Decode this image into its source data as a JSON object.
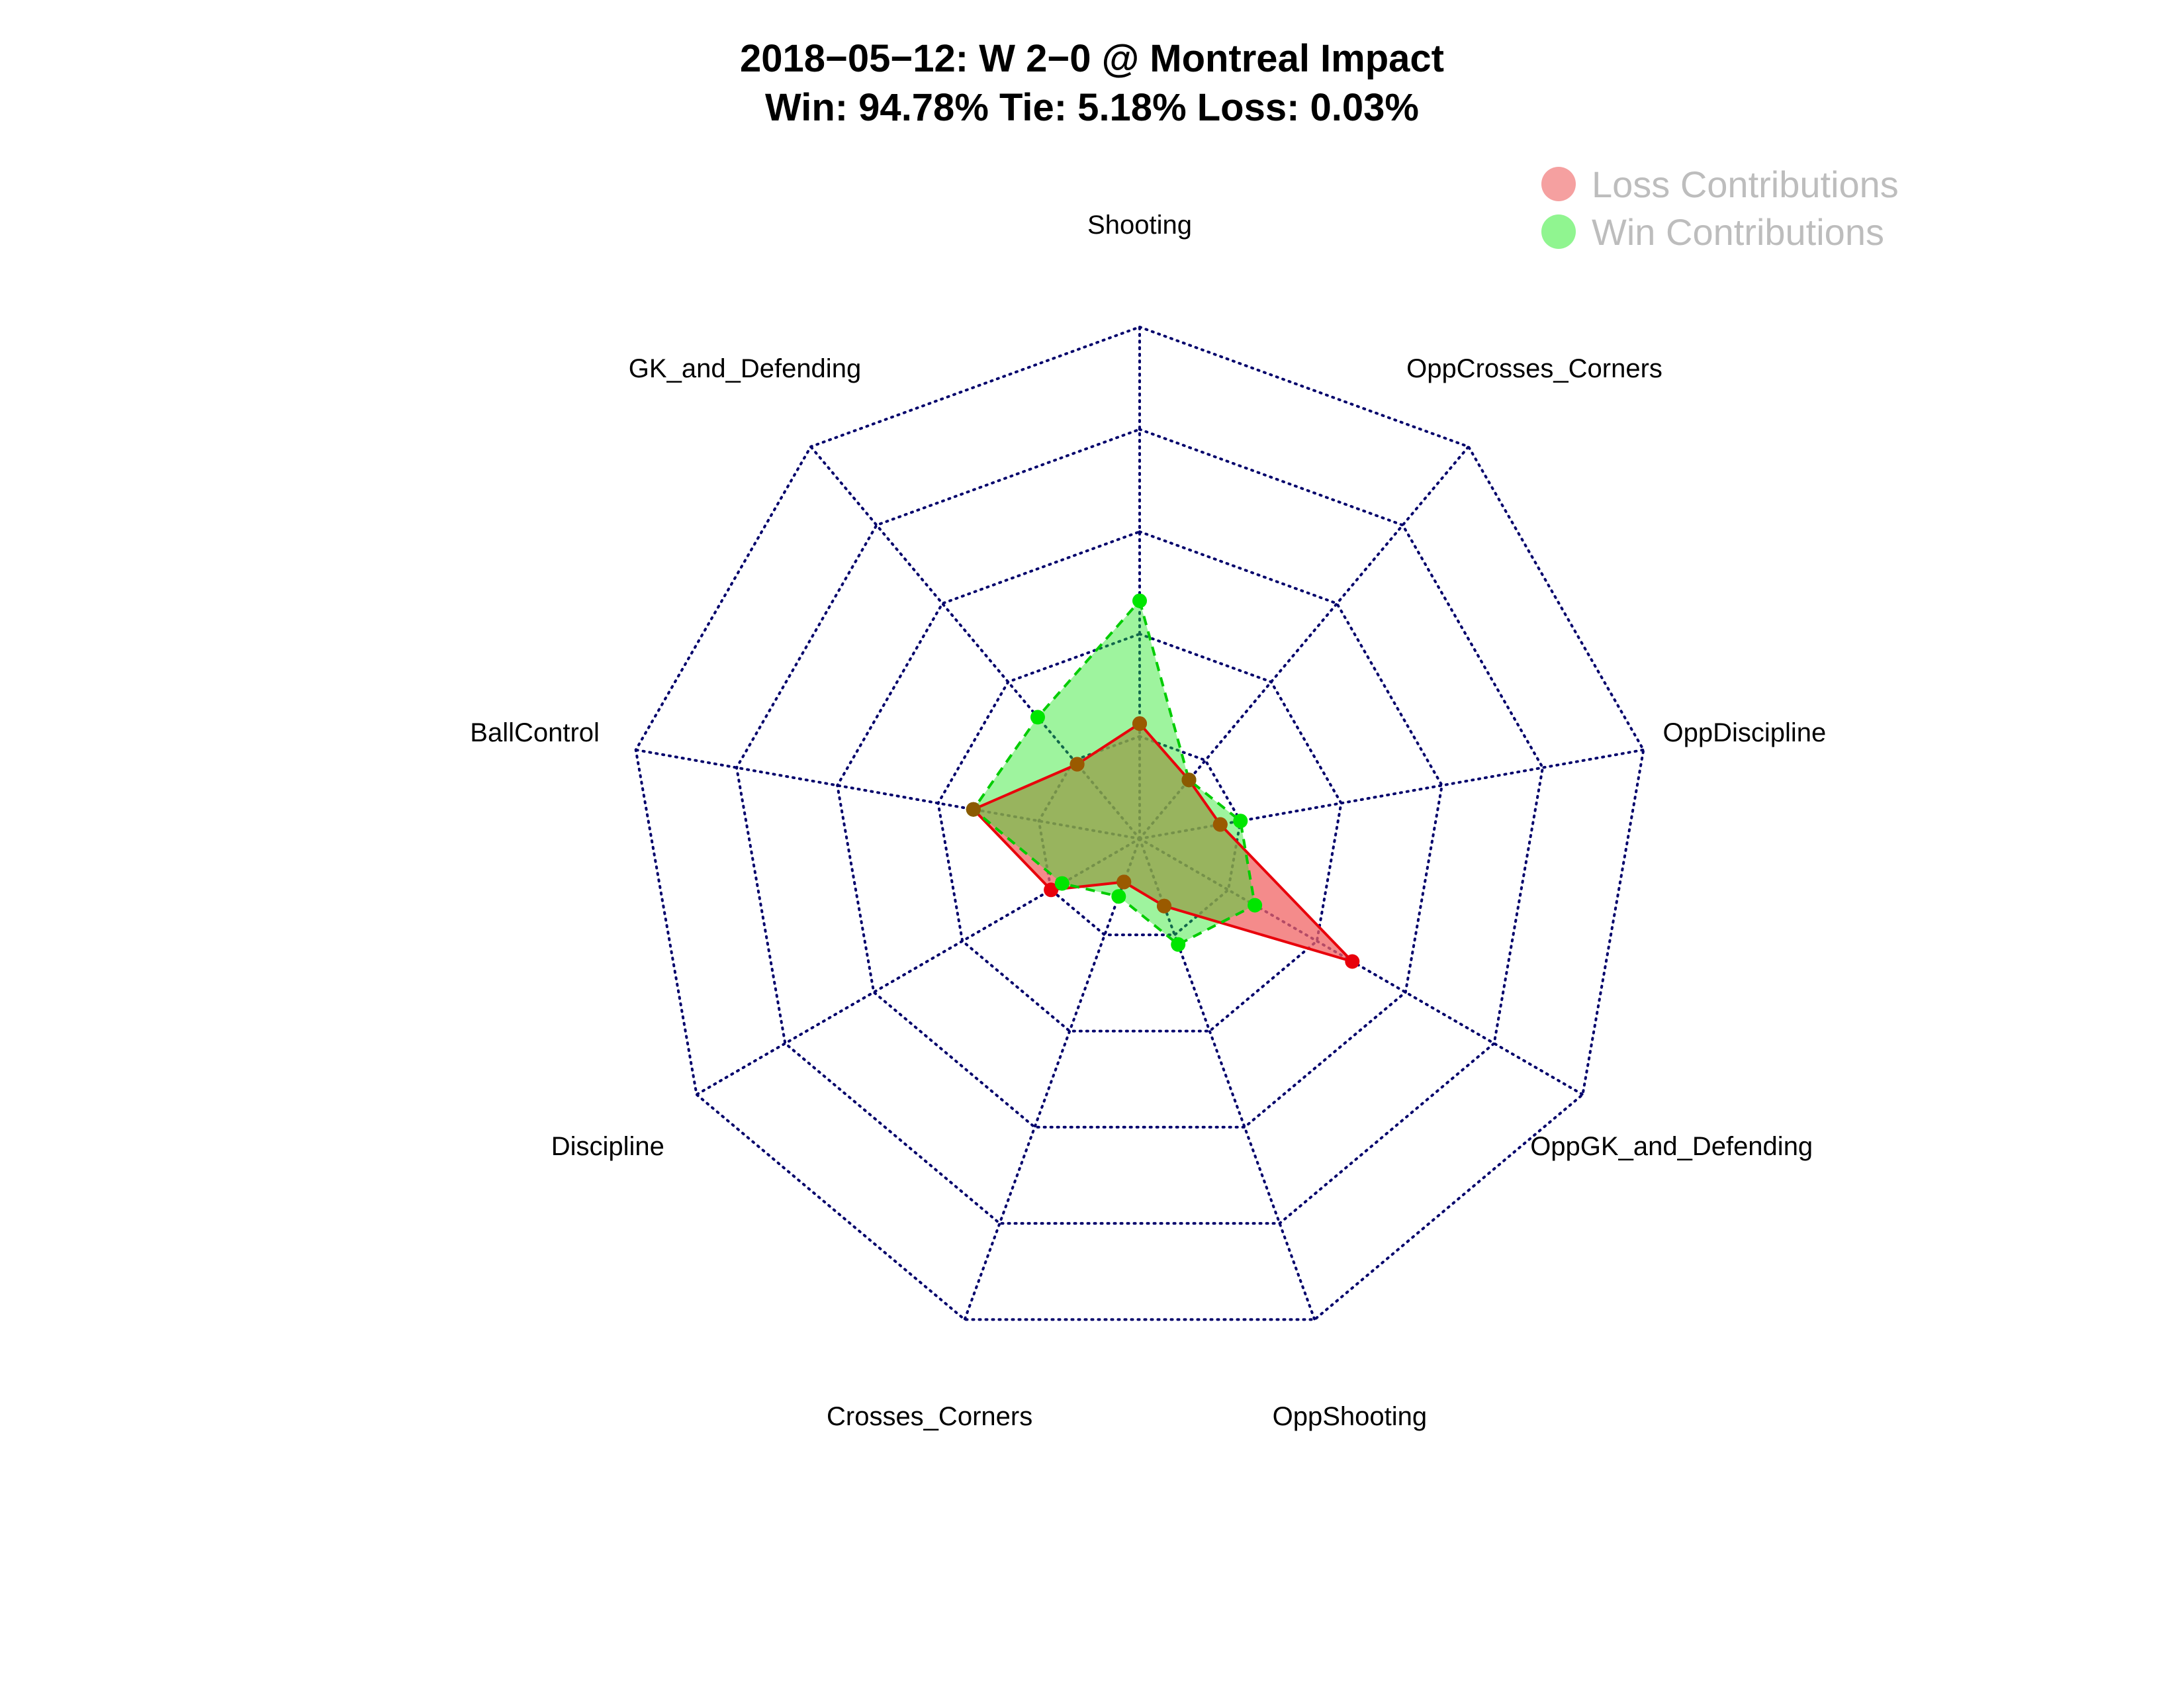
{
  "title": {
    "line1": "2018−05−12:  W 2−0   @ Montreal Impact",
    "line2": "Win: 94.78% Tie: 5.18% Loss: 0.03%"
  },
  "legend": {
    "placement": "top-right",
    "items": [
      {
        "label": "Loss Contributions",
        "color": "#f08080"
      },
      {
        "label": "Win Contributions",
        "color": "#7ef07e"
      }
    ]
  },
  "chart_data": {
    "type": "radar",
    "axes": [
      "Shooting",
      "OppCrosses_Corners",
      "OppDiscipline",
      "OppGK_and_Defending",
      "OppShooting",
      "Crosses_Corners",
      "Discipline",
      "BallControl",
      "GK_and_Defending"
    ],
    "range": [
      0,
      1
    ],
    "grid_levels": 5,
    "grid": true,
    "series": [
      {
        "name": "Loss Contributions",
        "values": [
          0.225,
          0.15,
          0.16,
          0.48,
          0.14,
          0.09,
          0.2,
          0.33,
          0.19
        ],
        "line_color": "#e8000b",
        "fill_color": "#f08080",
        "point_color": "#e8000b",
        "line_style": "solid"
      },
      {
        "name": "Win Contributions",
        "values": [
          0.465,
          0.15,
          0.2,
          0.26,
          0.22,
          0.12,
          0.175,
          0.33,
          0.31
        ],
        "line_color": "#00cc00",
        "fill_color": "#66ee66",
        "point_color": "#00e600",
        "line_style": "dashed"
      }
    ]
  }
}
